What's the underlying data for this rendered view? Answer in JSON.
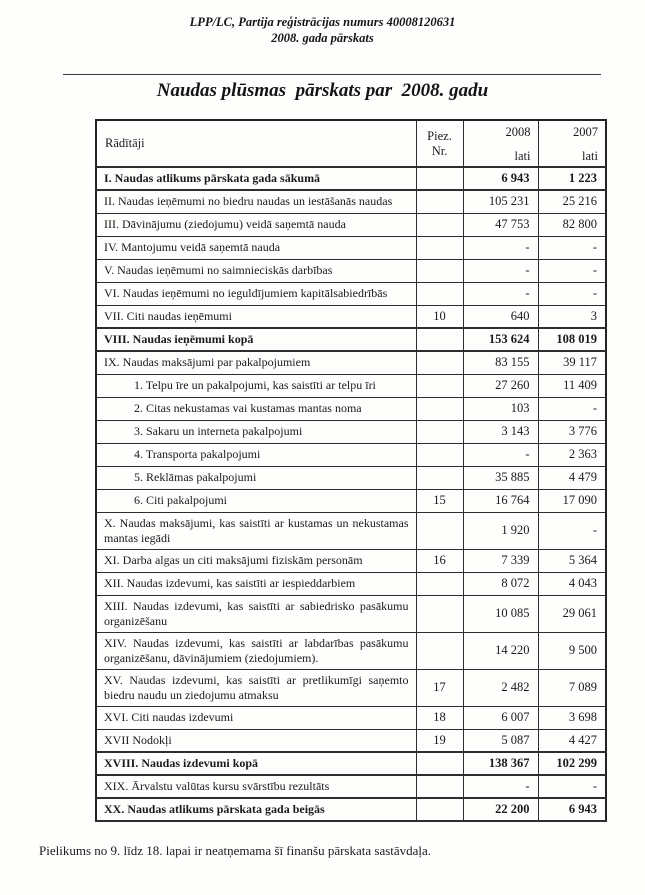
{
  "page": {
    "header_line1": "LPP/LC, Partija reģistrācijas numurs 40008120631",
    "header_line2": "2008. gada pārskats",
    "title": "Naudas plūsmas  pārskats par  2008. gadu",
    "footer": "Pielikums no 9. līdz 18. lapai ir neatņemama šī finanšu pārskata sastāvdaļa."
  },
  "table": {
    "columns": {
      "indicators": "Rādītāji",
      "note_line1": "Piez.",
      "note_line2": "Nr.",
      "year_2008": "2008",
      "year_2007": "2007",
      "unit": "lati"
    },
    "rows": [
      {
        "label": "I. Naudas atlikums pārskata gada sākumā",
        "note": "",
        "v2008": "6 943",
        "v2007": "1 223",
        "bold": true,
        "indent": false,
        "tall": false
      },
      {
        "label": "II. Naudas ieņēmumi no biedru naudas un iestāšanās naudas",
        "note": "",
        "v2008": "105 231",
        "v2007": "25 216",
        "bold": false,
        "indent": false,
        "tall": false
      },
      {
        "label": "III. Dāvinājumu (ziedojumu) veidā saņemtā nauda",
        "note": "",
        "v2008": "47 753",
        "v2007": "82 800",
        "bold": false,
        "indent": false,
        "tall": false
      },
      {
        "label": "IV. Mantojumu veidā saņemtā nauda",
        "note": "",
        "v2008": "-",
        "v2007": "-",
        "bold": false,
        "indent": false,
        "tall": false
      },
      {
        "label": "V. Naudas ieņēmumi no saimnieciskās darbības",
        "note": "",
        "v2008": "-",
        "v2007": "-",
        "bold": false,
        "indent": false,
        "tall": false
      },
      {
        "label": "VI. Naudas ieņēmumi no ieguldījumiem kapitālsabiedrībās",
        "note": "",
        "v2008": "-",
        "v2007": "-",
        "bold": false,
        "indent": false,
        "tall": false
      },
      {
        "label": "VII. Citi naudas ieņēmumi",
        "note": "10",
        "v2008": "640",
        "v2007": "3",
        "bold": false,
        "indent": false,
        "tall": false
      },
      {
        "label": "VIII. Naudas ieņēmumi kopā",
        "note": "",
        "v2008": "153 624",
        "v2007": "108 019",
        "bold": true,
        "indent": false,
        "tall": false
      },
      {
        "label": "IX. Naudas maksājumi par pakalpojumiem",
        "note": "",
        "v2008": "83 155",
        "v2007": "39 117",
        "bold": false,
        "indent": false,
        "tall": false
      },
      {
        "label": "1. Telpu īre un pakalpojumi, kas saistīti ar telpu īri",
        "note": "",
        "v2008": "27 260",
        "v2007": "11 409",
        "bold": false,
        "indent": true,
        "tall": false
      },
      {
        "label": "2. Citas nekustamas vai kustamas mantas noma",
        "note": "",
        "v2008": "103",
        "v2007": "-",
        "bold": false,
        "indent": true,
        "tall": false
      },
      {
        "label": "3. Sakaru un interneta pakalpojumi",
        "note": "",
        "v2008": "3 143",
        "v2007": "3 776",
        "bold": false,
        "indent": true,
        "tall": false
      },
      {
        "label": "4. Transporta pakalpojumi",
        "note": "",
        "v2008": "-",
        "v2007": "2 363",
        "bold": false,
        "indent": true,
        "tall": false
      },
      {
        "label": "5. Reklāmas pakalpojumi",
        "note": "",
        "v2008": "35 885",
        "v2007": "4 479",
        "bold": false,
        "indent": true,
        "tall": false
      },
      {
        "label": "6. Citi pakalpojumi",
        "note": "15",
        "v2008": "16 764",
        "v2007": "17 090",
        "bold": false,
        "indent": true,
        "tall": false
      },
      {
        "label": "X. Naudas maksājumi, kas saistīti ar kustamas un nekustamas mantas iegādi",
        "note": "",
        "v2008": "1 920",
        "v2007": "-",
        "bold": false,
        "indent": false,
        "tall": true
      },
      {
        "label": "XI. Darba algas un citi maksājumi fiziskām personām",
        "note": "16",
        "v2008": "7 339",
        "v2007": "5 364",
        "bold": false,
        "indent": false,
        "tall": false
      },
      {
        "label": "XII. Naudas izdevumi, kas saistīti ar iespieddarbiem",
        "note": "",
        "v2008": "8 072",
        "v2007": "4 043",
        "bold": false,
        "indent": false,
        "tall": false
      },
      {
        "label": "XIII. Naudas izdevumi, kas saistīti ar sabiedrisko pasākumu organizēšanu",
        "note": "",
        "v2008": "10 085",
        "v2007": "29 061",
        "bold": false,
        "indent": false,
        "tall": true
      },
      {
        "label": "XIV. Naudas izdevumi, kas saistīti ar labdarības pasākumu organizēšanu, dāvinājumiem (ziedojumiem).",
        "note": "",
        "v2008": "14 220",
        "v2007": "9 500",
        "bold": false,
        "indent": false,
        "tall": true
      },
      {
        "label": "XV. Naudas izdevumi, kas saistīti ar pretlikumīgi saņemto biedru naudu un ziedojumu atmaksu",
        "note": "17",
        "v2008": "2 482",
        "v2007": "7 089",
        "bold": false,
        "indent": false,
        "tall": true
      },
      {
        "label": "XVI. Citi naudas izdevumi",
        "note": "18",
        "v2008": "6 007",
        "v2007": "3 698",
        "bold": false,
        "indent": false,
        "tall": false
      },
      {
        "label": "XVII Nodokļi",
        "note": "19",
        "v2008": "5 087",
        "v2007": "4 427",
        "bold": false,
        "indent": false,
        "tall": false
      },
      {
        "label": "XVIII. Naudas izdevumi kopā",
        "note": "",
        "v2008": "138 367",
        "v2007": "102 299",
        "bold": true,
        "indent": false,
        "tall": false
      },
      {
        "label": "XIX. Ārvalstu valūtas kursu svārstību rezultāts",
        "note": "",
        "v2008": "-",
        "v2007": "-",
        "bold": false,
        "indent": false,
        "tall": false
      },
      {
        "label": "XX. Naudas atlikums pārskata gada beigās",
        "note": "",
        "v2008": "22 200",
        "v2007": "6 943",
        "bold": true,
        "indent": false,
        "tall": false
      }
    ]
  }
}
